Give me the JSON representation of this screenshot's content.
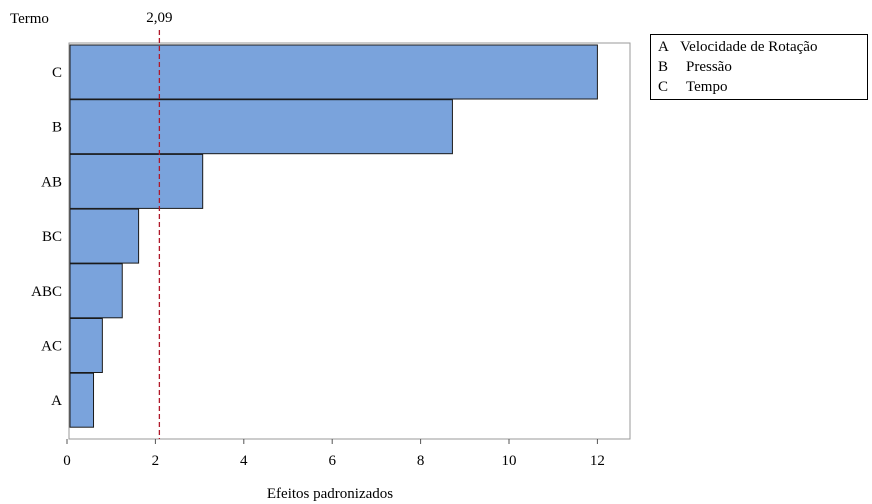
{
  "chart_data": {
    "type": "bar",
    "orientation": "horizontal",
    "ylabel": "Termo",
    "xlabel": "Efeitos padronizados",
    "categories": [
      "C",
      "B",
      "AB",
      "BC",
      "ABC",
      "AC",
      "A"
    ],
    "values": [
      12.0,
      8.72,
      3.07,
      1.62,
      1.25,
      0.8,
      0.6
    ],
    "xlim": [
      0,
      13
    ],
    "xticks": [
      "0",
      "2",
      "4",
      "6",
      "8",
      "10",
      "12"
    ],
    "reference_line": {
      "value": 2.09,
      "label": "2,09"
    },
    "bar_color": "#7aa3dc",
    "bar_edge_color": "#1a1a1a",
    "reference_line_color": "#b0192b",
    "grid": false
  },
  "legend": {
    "placement": "top-right, outside plot",
    "items": [
      {
        "key": "A",
        "label": "Velocidade de Rotação"
      },
      {
        "key": "B",
        "label": "Pressão"
      },
      {
        "key": "C",
        "label": "Tempo"
      }
    ]
  }
}
